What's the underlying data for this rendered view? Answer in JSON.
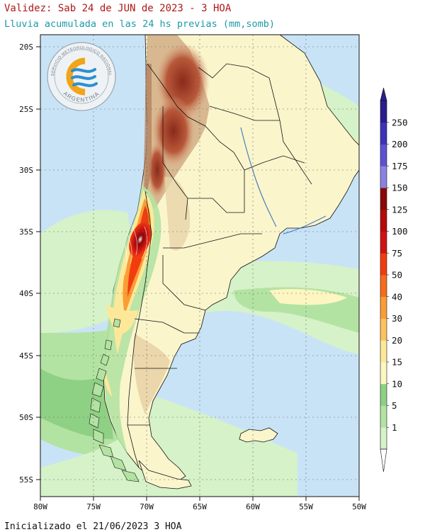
{
  "header": {
    "title": "Validez: Sab 24 de JUN de 2023 - 3 HOA",
    "subtitle": "Lluvia acumulada en las 24 hs previas (mm,somb)"
  },
  "footer": {
    "text": "Inicializado el 21/06/2023 3 HOA"
  },
  "logo": {
    "top_text": "SERVICIO METEOROLOGICO NACIONAL",
    "bottom_text": "ARGENTINA"
  },
  "map": {
    "lat_labels": [
      "20S",
      "25S",
      "30S",
      "35S",
      "40S",
      "45S",
      "50S",
      "55S"
    ],
    "lat_values": [
      -20,
      -25,
      -30,
      -35,
      -40,
      -45,
      -50,
      -55
    ],
    "lon_labels": [
      "80W",
      "75W",
      "70W",
      "65W",
      "60W",
      "55W",
      "50W"
    ],
    "lon_values": [
      -80,
      -75,
      -70,
      -65,
      -60,
      -55,
      -50
    ],
    "lat_range": [
      -56,
      -18
    ],
    "lon_range": [
      -80,
      -50
    ]
  },
  "colorbar": {
    "levels": [
      "1",
      "5",
      "10",
      "15",
      "20",
      "30",
      "40",
      "50",
      "75",
      "100",
      "125",
      "150",
      "175",
      "200",
      "250"
    ],
    "colors": [
      "#d6f2c8",
      "#b3e3a2",
      "#8fd184",
      "#fdf6c2",
      "#fde89a",
      "#fcc25e",
      "#fa9d35",
      "#f66b1c",
      "#f23c10",
      "#d11212",
      "#b30c0c",
      "#8a0808",
      "#8a82e0",
      "#5a52d0",
      "#3a34b8",
      "#2a1d8e"
    ]
  }
}
